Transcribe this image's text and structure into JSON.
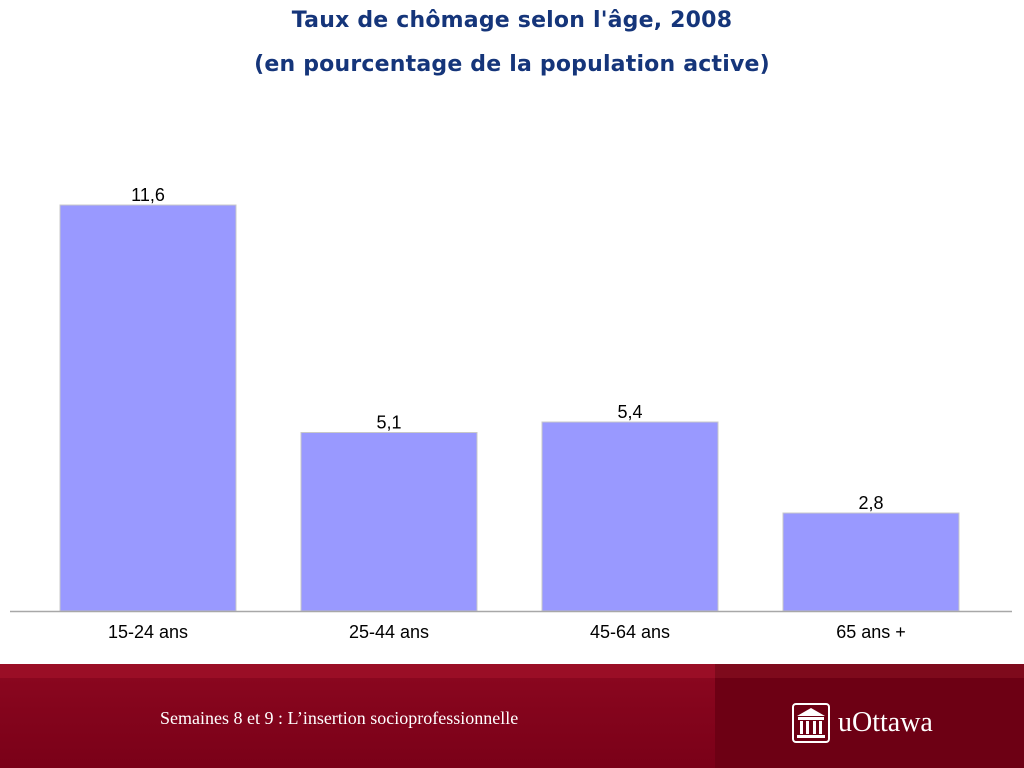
{
  "chart_data": {
    "type": "bar",
    "title": "Taux de chômage selon l'âge, 2008",
    "subtitle": "(en pourcentage de la population active)",
    "categories": [
      "15-24 ans",
      "25-44 ans",
      "45-64 ans",
      "65 ans +"
    ],
    "values": [
      11.6,
      5.1,
      5.4,
      2.8
    ],
    "value_labels": [
      "11,6",
      "5,1",
      "5,4",
      "2,8"
    ],
    "ylim": [
      0,
      12
    ],
    "grid": false,
    "bar_color": "#9999ff",
    "bar_edge_color": "#c8c8c8"
  },
  "footer": {
    "text": "Semaines 8 et 9 : L’insertion socioprofessionnelle",
    "brand": "uOttawa",
    "brand_icon": "university-building-icon",
    "colors": {
      "main": "#8c0820",
      "right_panel": "#6d0014"
    }
  }
}
